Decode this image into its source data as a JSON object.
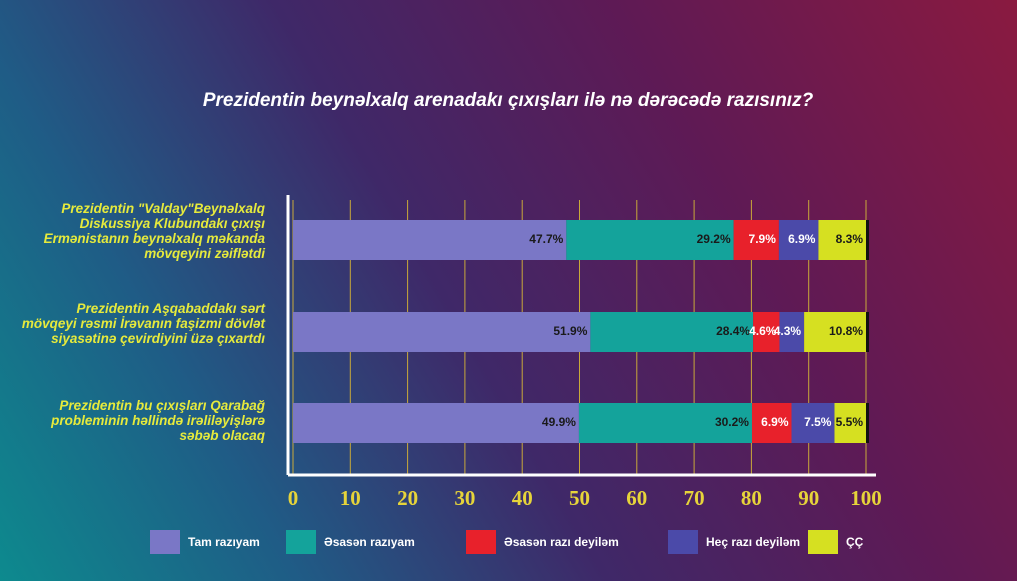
{
  "chart_data": {
    "type": "stacked_barh",
    "title": "Prezidentin beynəlxalq arenadakı çıxışları ilə nə dərəcədə razısınız?",
    "categories": [
      "Prezidentin \"Valday\"Beynəlxalq Diskussiya Klubundakı çıxışı Ermənistanın beynəlxalq məkanda mövqeyini zəiflətdi",
      "Prezidentin Aşqabaddakı sərt mövqeyi rəsmi İrəvanın faşizmi dövlət siyasətinə çevirdiyini üzə çıxartdı",
      "Prezidentin bu çıxışları Qarabağ probleminin həllində irəliləyişlərə səbəb olacaq"
    ],
    "series": [
      {
        "name": "Tam razıyam",
        "color": "#7a77c6",
        "values": [
          47.7,
          51.9,
          49.9
        ],
        "value_labels": [
          "47.7%",
          "51.9%",
          "49.9%"
        ]
      },
      {
        "name": "Əsasən razıyam",
        "color": "#14a39b",
        "values": [
          29.2,
          28.4,
          30.2
        ],
        "value_labels": [
          "29.2%",
          "28.4%",
          "30.2%"
        ]
      },
      {
        "name": "Əsasən razı deyiləm",
        "color": "#e8212b",
        "values": [
          7.9,
          4.6,
          6.9
        ],
        "value_labels": [
          "7.9%",
          "4.6%",
          "6.9%"
        ]
      },
      {
        "name": "Heç razı deyiləm",
        "color": "#4b4aa9",
        "values": [
          6.9,
          4.3,
          7.5
        ],
        "value_labels": [
          "6.9%",
          "4.3%",
          "7.5%"
        ]
      },
      {
        "name": "ÇÇ",
        "color": "#d6e021",
        "values": [
          8.3,
          10.8,
          5.5
        ],
        "value_labels": [
          "8.3%",
          "10.8%",
          "5.5%"
        ]
      }
    ],
    "xlim": [
      0,
      100
    ],
    "xticks": [
      0,
      10,
      20,
      30,
      40,
      50,
      60,
      70,
      80,
      90,
      100
    ],
    "grid": true
  }
}
